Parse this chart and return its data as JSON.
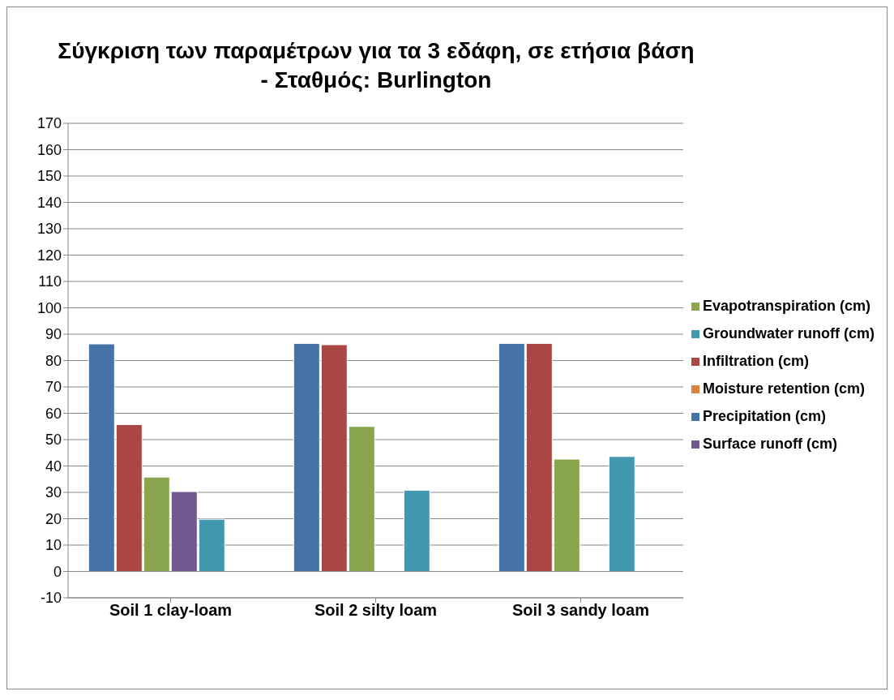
{
  "chart_data": {
    "type": "bar",
    "title": "Σύγκριση των παραμέτρων για τα 3 εδάφη, σε ετήσια βάση - Σταθμός: Burlington",
    "categories": [
      "Soil 1 clay-loam",
      "Soil 2 silty loam",
      "Soil 3 sandy loam"
    ],
    "series": [
      {
        "name": "Precipitation (cm)",
        "color": "#4572a7",
        "values": [
          86.3,
          86.5,
          86.5
        ]
      },
      {
        "name": "Infiltration (cm)",
        "color": "#aa4643",
        "values": [
          55.7,
          86,
          86.5
        ]
      },
      {
        "name": "Evapotranspiration (cm)",
        "color": "#89a54e",
        "values": [
          35.8,
          55,
          42.6
        ]
      },
      {
        "name": "Surface runoff  (cm)",
        "color": "#71588f",
        "values": [
          30.3,
          0,
          0
        ]
      },
      {
        "name": "Groundwater runoff (cm)",
        "color": "#4198af",
        "values": [
          19.8,
          30.8,
          43.6
        ]
      },
      {
        "name": "Moisture retention (cm)",
        "color": "#db843d",
        "values": [
          0,
          0,
          0
        ]
      }
    ],
    "ylim": [
      -10,
      170
    ],
    "yticks": [
      -10,
      0,
      10,
      20,
      30,
      40,
      50,
      60,
      70,
      80,
      90,
      100,
      110,
      120,
      130,
      140,
      150,
      160,
      170
    ],
    "grid": "y",
    "legend": "right"
  }
}
